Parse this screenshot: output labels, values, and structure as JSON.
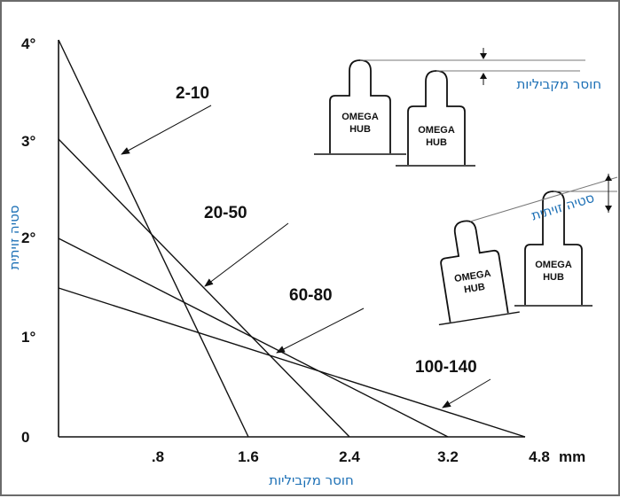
{
  "chart_data": {
    "type": "line",
    "xlabel": "חוסר מקביליות",
    "ylabel": "סטיה זויתית",
    "x_unit": "mm",
    "xlim": [
      0,
      4.8
    ],
    "ylim": [
      0,
      4
    ],
    "x_ticks": [
      "0",
      ".8",
      "1.6",
      "2.4",
      "3.2",
      "4.8"
    ],
    "y_ticks": [
      "0",
      "1°",
      "2°",
      "3°",
      "4°"
    ],
    "series": [
      {
        "name": "2-10",
        "x": [
          0,
          1.6
        ],
        "y": [
          4,
          0
        ]
      },
      {
        "name": "20-50",
        "x": [
          0,
          2.4
        ],
        "y": [
          3,
          0
        ]
      },
      {
        "name": "60-80",
        "x": [
          0,
          3.2
        ],
        "y": [
          2,
          0
        ]
      },
      {
        "name": "100-140",
        "x": [
          0,
          4.8
        ],
        "y": [
          1.5,
          0
        ]
      }
    ]
  },
  "diagram": {
    "top_label": "חוסר מקביליות",
    "middle_label": "סטיה זויתית",
    "hub_line1": "OMEGA",
    "hub_line2": "HUB"
  }
}
